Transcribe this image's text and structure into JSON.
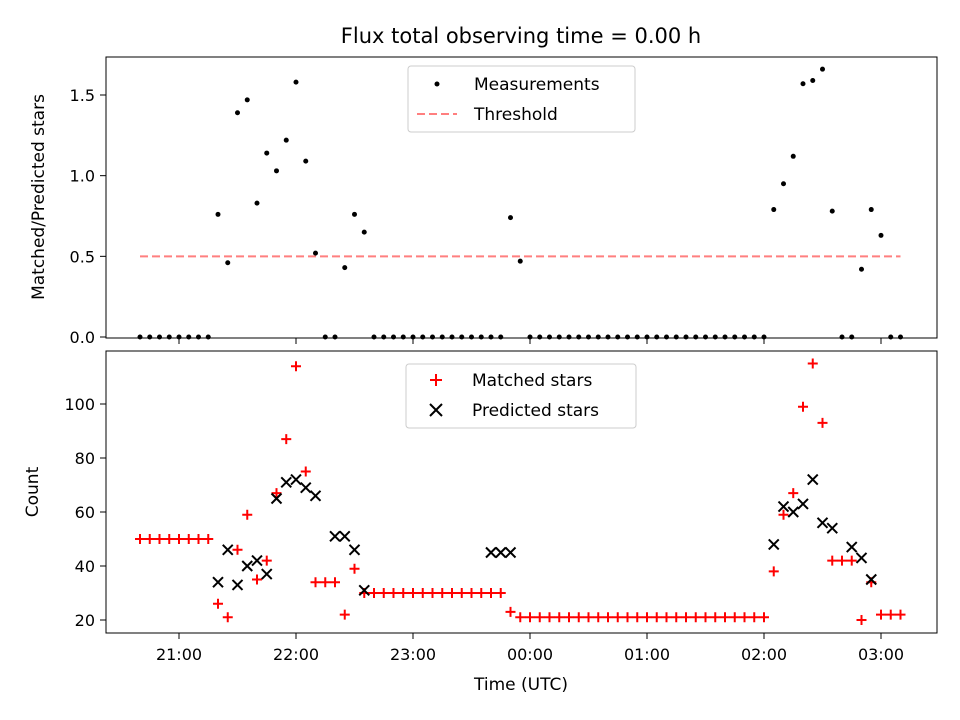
{
  "chart_data": [
    {
      "type": "scatter",
      "title": "Flux total observing time = 0.00 h",
      "xlabel": "",
      "ylabel": "Matched/Predicted stars",
      "ylim": [
        0.0,
        1.75
      ],
      "yticks": [
        0.0,
        0.5,
        1.0,
        1.5
      ],
      "ytick_labels": [
        "0.0",
        "0.5",
        "1.0",
        "1.5"
      ],
      "legend": "top-center",
      "series": [
        {
          "name": "Measurements",
          "color": "#000000",
          "marker": "dot",
          "x": [
            "20:40",
            "20:45",
            "20:50",
            "20:55",
            "21:00",
            "21:05",
            "21:10",
            "21:15",
            "21:20",
            "21:25",
            "21:30",
            "21:35",
            "21:40",
            "21:45",
            "21:50",
            "21:55",
            "22:00",
            "22:05",
            "22:10",
            "22:15",
            "22:20",
            "22:25",
            "22:30",
            "22:35",
            "22:40",
            "22:45",
            "22:50",
            "22:55",
            "23:00",
            "23:05",
            "23:10",
            "23:15",
            "23:20",
            "23:25",
            "23:30",
            "23:35",
            "23:40",
            "23:45",
            "23:50",
            "23:55",
            "00:00",
            "00:05",
            "00:10",
            "00:15",
            "00:20",
            "00:25",
            "00:30",
            "00:35",
            "00:40",
            "00:45",
            "00:50",
            "00:55",
            "01:00",
            "01:05",
            "01:10",
            "01:15",
            "01:20",
            "01:25",
            "01:30",
            "01:35",
            "01:40",
            "01:45",
            "01:50",
            "01:55",
            "02:00",
            "02:05",
            "02:10",
            "02:15",
            "02:20",
            "02:25",
            "02:30",
            "02:35",
            "02:40",
            "02:45",
            "02:50",
            "02:55",
            "03:00",
            "03:05",
            "03:10"
          ],
          "y": [
            0,
            0,
            0,
            0,
            0,
            0,
            0,
            0,
            0.76,
            0.46,
            1.39,
            1.47,
            0.83,
            1.14,
            1.03,
            1.22,
            1.58,
            1.09,
            0.52,
            0,
            0,
            0.43,
            0.76,
            0.65,
            0,
            0,
            0,
            0,
            0,
            0,
            0,
            0,
            0,
            0,
            0,
            0,
            0,
            0,
            0.74,
            0.47,
            0,
            0,
            0,
            0,
            0,
            0,
            0,
            0,
            0,
            0,
            0,
            0,
            0,
            0,
            0,
            0,
            0,
            0,
            0,
            0,
            0,
            0,
            0,
            0,
            0,
            0.79,
            0.95,
            1.12,
            1.57,
            1.59,
            1.66,
            0.78,
            0,
            0,
            0.42,
            0.79,
            0.63,
            0,
            0
          ]
        },
        {
          "name": "Threshold",
          "color": "#ff7f7f",
          "style": "dashed",
          "x": [
            "20:40",
            "03:10"
          ],
          "y": [
            0.5,
            0.5
          ]
        }
      ]
    },
    {
      "type": "scatter",
      "title": "",
      "xlabel": "Time (UTC)",
      "ylabel": "Count",
      "ylim": [
        15,
        120
      ],
      "yticks": [
        20,
        40,
        60,
        80,
        100
      ],
      "ytick_labels": [
        "20",
        "40",
        "60",
        "80",
        "100"
      ],
      "xticks": [
        "21:00",
        "22:00",
        "23:00",
        "00:00",
        "01:00",
        "02:00",
        "03:00"
      ],
      "legend": "top-center",
      "series": [
        {
          "name": "Matched stars",
          "color": "#ff0000",
          "marker": "plus",
          "x": [
            "20:40",
            "20:45",
            "20:50",
            "20:55",
            "21:00",
            "21:05",
            "21:10",
            "21:15",
            "21:20",
            "21:25",
            "21:30",
            "21:35",
            "21:40",
            "21:45",
            "21:50",
            "21:55",
            "22:00",
            "22:05",
            "22:10",
            "22:15",
            "22:20",
            "22:25",
            "22:30",
            "22:35",
            "22:40",
            "22:45",
            "22:50",
            "22:55",
            "23:00",
            "23:05",
            "23:10",
            "23:15",
            "23:20",
            "23:25",
            "23:30",
            "23:35",
            "23:40",
            "23:45",
            "23:50",
            "23:55",
            "00:00",
            "00:05",
            "00:10",
            "00:15",
            "00:20",
            "00:25",
            "00:30",
            "00:35",
            "00:40",
            "00:45",
            "00:50",
            "00:55",
            "01:00",
            "01:05",
            "01:10",
            "01:15",
            "01:20",
            "01:25",
            "01:30",
            "01:35",
            "01:40",
            "01:45",
            "01:50",
            "01:55",
            "02:00",
            "02:05",
            "02:10",
            "02:15",
            "02:20",
            "02:25",
            "02:30",
            "02:35",
            "02:40",
            "02:45",
            "02:50",
            "02:55",
            "03:00",
            "03:05",
            "03:10"
          ],
          "y": [
            50,
            50,
            50,
            50,
            50,
            50,
            50,
            50,
            26,
            21,
            46,
            59,
            35,
            42,
            67,
            87,
            114,
            75,
            34,
            34,
            34,
            22,
            39,
            30,
            30,
            30,
            30,
            30,
            30,
            30,
            30,
            30,
            30,
            30,
            30,
            30,
            30,
            30,
            23,
            21,
            21,
            21,
            21,
            21,
            21,
            21,
            21,
            21,
            21,
            21,
            21,
            21,
            21,
            21,
            21,
            21,
            21,
            21,
            21,
            21,
            21,
            21,
            21,
            21,
            21,
            38,
            59,
            67,
            99,
            115,
            93,
            42,
            42,
            42,
            20,
            34,
            22,
            22,
            22
          ]
        },
        {
          "name": "Predicted stars",
          "color": "#000000",
          "marker": "x",
          "x": [
            "21:20",
            "21:25",
            "21:30",
            "21:35",
            "21:40",
            "21:45",
            "21:50",
            "21:55",
            "22:00",
            "22:05",
            "22:10",
            "22:20",
            "22:25",
            "22:30",
            "22:35",
            "23:40",
            "23:45",
            "23:50",
            "02:05",
            "02:10",
            "02:15",
            "02:20",
            "02:25",
            "02:30",
            "02:35",
            "02:45",
            "02:50",
            "02:55"
          ],
          "y": [
            34,
            46,
            33,
            40,
            42,
            37,
            65,
            71,
            72,
            69,
            66,
            51,
            51,
            46,
            31,
            45,
            45,
            45,
            48,
            62,
            60,
            63,
            72,
            56,
            54,
            47,
            43,
            35
          ]
        }
      ]
    }
  ]
}
